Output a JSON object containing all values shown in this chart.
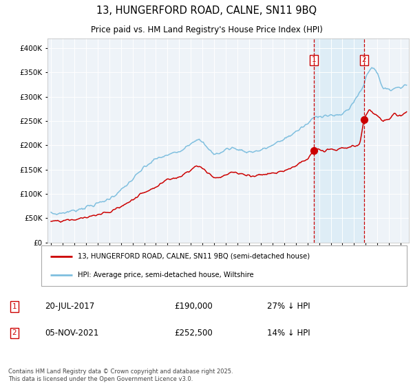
{
  "title1": "13, HUNGERFORD ROAD, CALNE, SN11 9BQ",
  "title2": "Price paid vs. HM Land Registry's House Price Index (HPI)",
  "ylim": [
    0,
    420000
  ],
  "yticks": [
    0,
    50000,
    100000,
    150000,
    200000,
    250000,
    300000,
    350000,
    400000
  ],
  "ytick_labels": [
    "£0",
    "£50K",
    "£100K",
    "£150K",
    "£200K",
    "£250K",
    "£300K",
    "£350K",
    "£400K"
  ],
  "hpi_color": "#7fbfdf",
  "price_color": "#cc0000",
  "marker1_date": 2017.55,
  "marker1_price": 190000,
  "marker2_date": 2021.85,
  "marker2_price": 252500,
  "shade_color": "#d0e8f5",
  "shade_alpha": 0.5,
  "legend_price": "13, HUNGERFORD ROAD, CALNE, SN11 9BQ (semi-detached house)",
  "legend_hpi": "HPI: Average price, semi-detached house, Wiltshire",
  "note1_date": "20-JUL-2017",
  "note1_price": "£190,000",
  "note1_pct": "27% ↓ HPI",
  "note2_date": "05-NOV-2021",
  "note2_price": "£252,500",
  "note2_pct": "14% ↓ HPI",
  "copyright": "Contains HM Land Registry data © Crown copyright and database right 2025.\nThis data is licensed under the Open Government Licence v3.0.",
  "bg_color": "#ffffff",
  "plot_bg_color": "#eef3f8",
  "grid_color": "#ffffff",
  "xlim_left": 1994.7,
  "xlim_right": 2025.7
}
